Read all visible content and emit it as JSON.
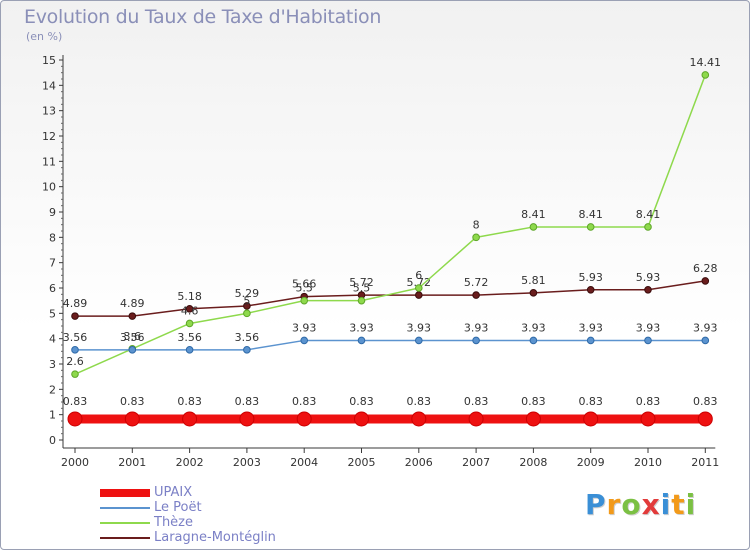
{
  "header": {
    "title": "Evolution du Taux de Taxe d'Habitation",
    "subtitle": "(en %)"
  },
  "chart_data": {
    "type": "line",
    "title": "Evolution du Taux de Taxe d'Habitation",
    "ylabel": "(en %)",
    "xlabel": "",
    "ylim": [
      0,
      15
    ],
    "yticks": [
      "0",
      "1",
      "2",
      "3",
      "4",
      "5",
      "6",
      "7",
      "8",
      "9",
      "10",
      "11",
      "12",
      "13",
      "14",
      "15"
    ],
    "categories": [
      "2000",
      "2001",
      "2002",
      "2003",
      "2004",
      "2005",
      "2006",
      "2007",
      "2008",
      "2009",
      "2010",
      "2011"
    ],
    "series": [
      {
        "name": "UPAIX",
        "color": "#ee1111",
        "values": [
          0.83,
          0.83,
          0.83,
          0.83,
          0.83,
          0.83,
          0.83,
          0.83,
          0.83,
          0.83,
          0.83,
          0.83
        ],
        "labels": [
          "0.83",
          "0.83",
          "0.83",
          "0.83",
          "0.83",
          "0.83",
          "0.83",
          "0.83",
          "0.83",
          "0.83",
          "0.83",
          "0.83"
        ]
      },
      {
        "name": "Le Poët",
        "color": "#5b93cf",
        "values": [
          3.56,
          3.56,
          3.56,
          3.56,
          3.93,
          3.93,
          3.93,
          3.93,
          3.93,
          3.93,
          3.93,
          3.93
        ],
        "labels": [
          "3.56",
          "3.56",
          "3.56",
          "3.56",
          "3.93",
          "3.93",
          "3.93",
          "3.93",
          "3.93",
          "3.93",
          "3.93",
          "3.93"
        ]
      },
      {
        "name": "Thèze",
        "color": "#8ed94c",
        "values": [
          2.6,
          3.6,
          4.6,
          5,
          5.5,
          5.5,
          6,
          8,
          8.41,
          8.41,
          8.41,
          14.41
        ],
        "labels": [
          "2.6",
          "3.6",
          "4.6",
          "5",
          "5.5",
          "5.5",
          "6",
          "8",
          "8.41",
          "8.41",
          "8.41",
          "14.41"
        ]
      },
      {
        "name": "Laragne-Montéglin",
        "color": "#6a1d1d",
        "values": [
          4.89,
          4.89,
          5.18,
          5.29,
          5.66,
          5.72,
          5.72,
          5.72,
          5.81,
          5.93,
          5.93,
          6.28
        ],
        "labels": [
          "4.89",
          "4.89",
          "5.18",
          "5.29",
          "5.66",
          "5.72",
          "5.72",
          "5.72",
          "5.81",
          "5.93",
          "5.93",
          "6.28"
        ]
      }
    ],
    "legend_position": "bottom-left",
    "grid": false
  },
  "legend": {
    "items": [
      {
        "label": "UPAIX",
        "color": "#ee1111"
      },
      {
        "label": "Le Poët",
        "color": "#5b93cf"
      },
      {
        "label": "Thèze",
        "color": "#8ed94c"
      },
      {
        "label": "Laragne-Montéglin",
        "color": "#6a1d1d"
      }
    ]
  },
  "brand": {
    "name": "Proxiti",
    "letters": [
      "P",
      "r",
      "o",
      "x",
      "i",
      "t",
      "i"
    ],
    "colors": [
      "#3a8fd6",
      "#f29a1a",
      "#7bc043",
      "#e23b3b",
      "#3a8fd6",
      "#f29a1a",
      "#7bc043"
    ]
  }
}
